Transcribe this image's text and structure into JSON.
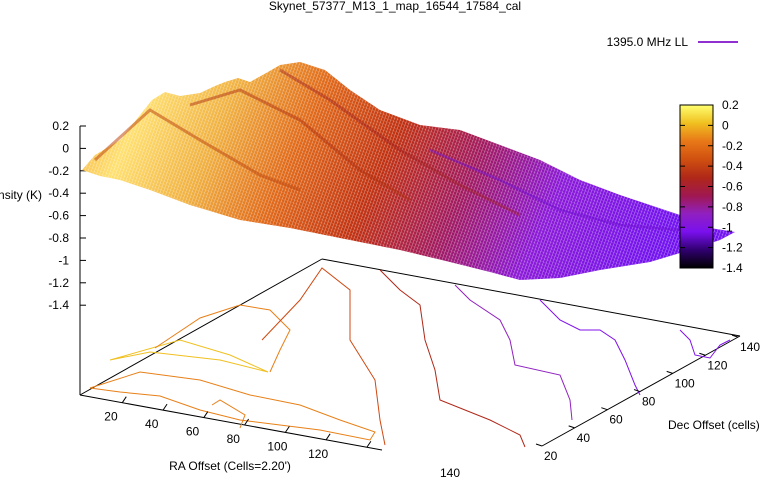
{
  "chart_data": {
    "type": "surface",
    "title": "Skynet_57377_M13_1_map_16544_17584_cal",
    "legend": {
      "entries": [
        "1395.0 MHz LL"
      ],
      "placement": "top-right"
    },
    "xlabel": "RA Offset (Cells=2.20')",
    "ylabel": "Dec Offset (cells)",
    "zlabel": "Intensity (K)",
    "x_ticks": [
      "20",
      "40",
      "60",
      "80",
      "100",
      "120",
      "140"
    ],
    "y_ticks": [
      "20",
      "40",
      "60",
      "80",
      "100",
      "120",
      "140"
    ],
    "z_ticks": [
      "0.2",
      "0",
      "-0.2",
      "-0.4",
      "-0.6",
      "-0.8",
      "-1",
      "-1.2",
      "-1.4"
    ],
    "zlim": [
      -1.4,
      0.2
    ],
    "colorbar": {
      "ticks": [
        "0.2",
        "0",
        "-0.2",
        "-0.4",
        "-0.6",
        "-0.8",
        "-1",
        "-1.2",
        "-1.4"
      ],
      "range": [
        -1.4,
        0.2
      ],
      "colors": [
        "#ffff70",
        "#f0c020",
        "#e87818",
        "#d05010",
        "#b02818",
        "#a01850",
        "#9020c0",
        "#7a10ee",
        "#300070",
        "#000000"
      ]
    },
    "contour_levels": [
      {
        "level": 0.0,
        "color": "#f0c020"
      },
      {
        "level": -0.2,
        "color": "#e88018"
      },
      {
        "level": -0.4,
        "color": "#d04810"
      },
      {
        "level": -0.6,
        "color": "#b02818"
      },
      {
        "level": -0.8,
        "color": "#9020c0"
      },
      {
        "level": -1.0,
        "color": "#8010e8"
      }
    ]
  }
}
